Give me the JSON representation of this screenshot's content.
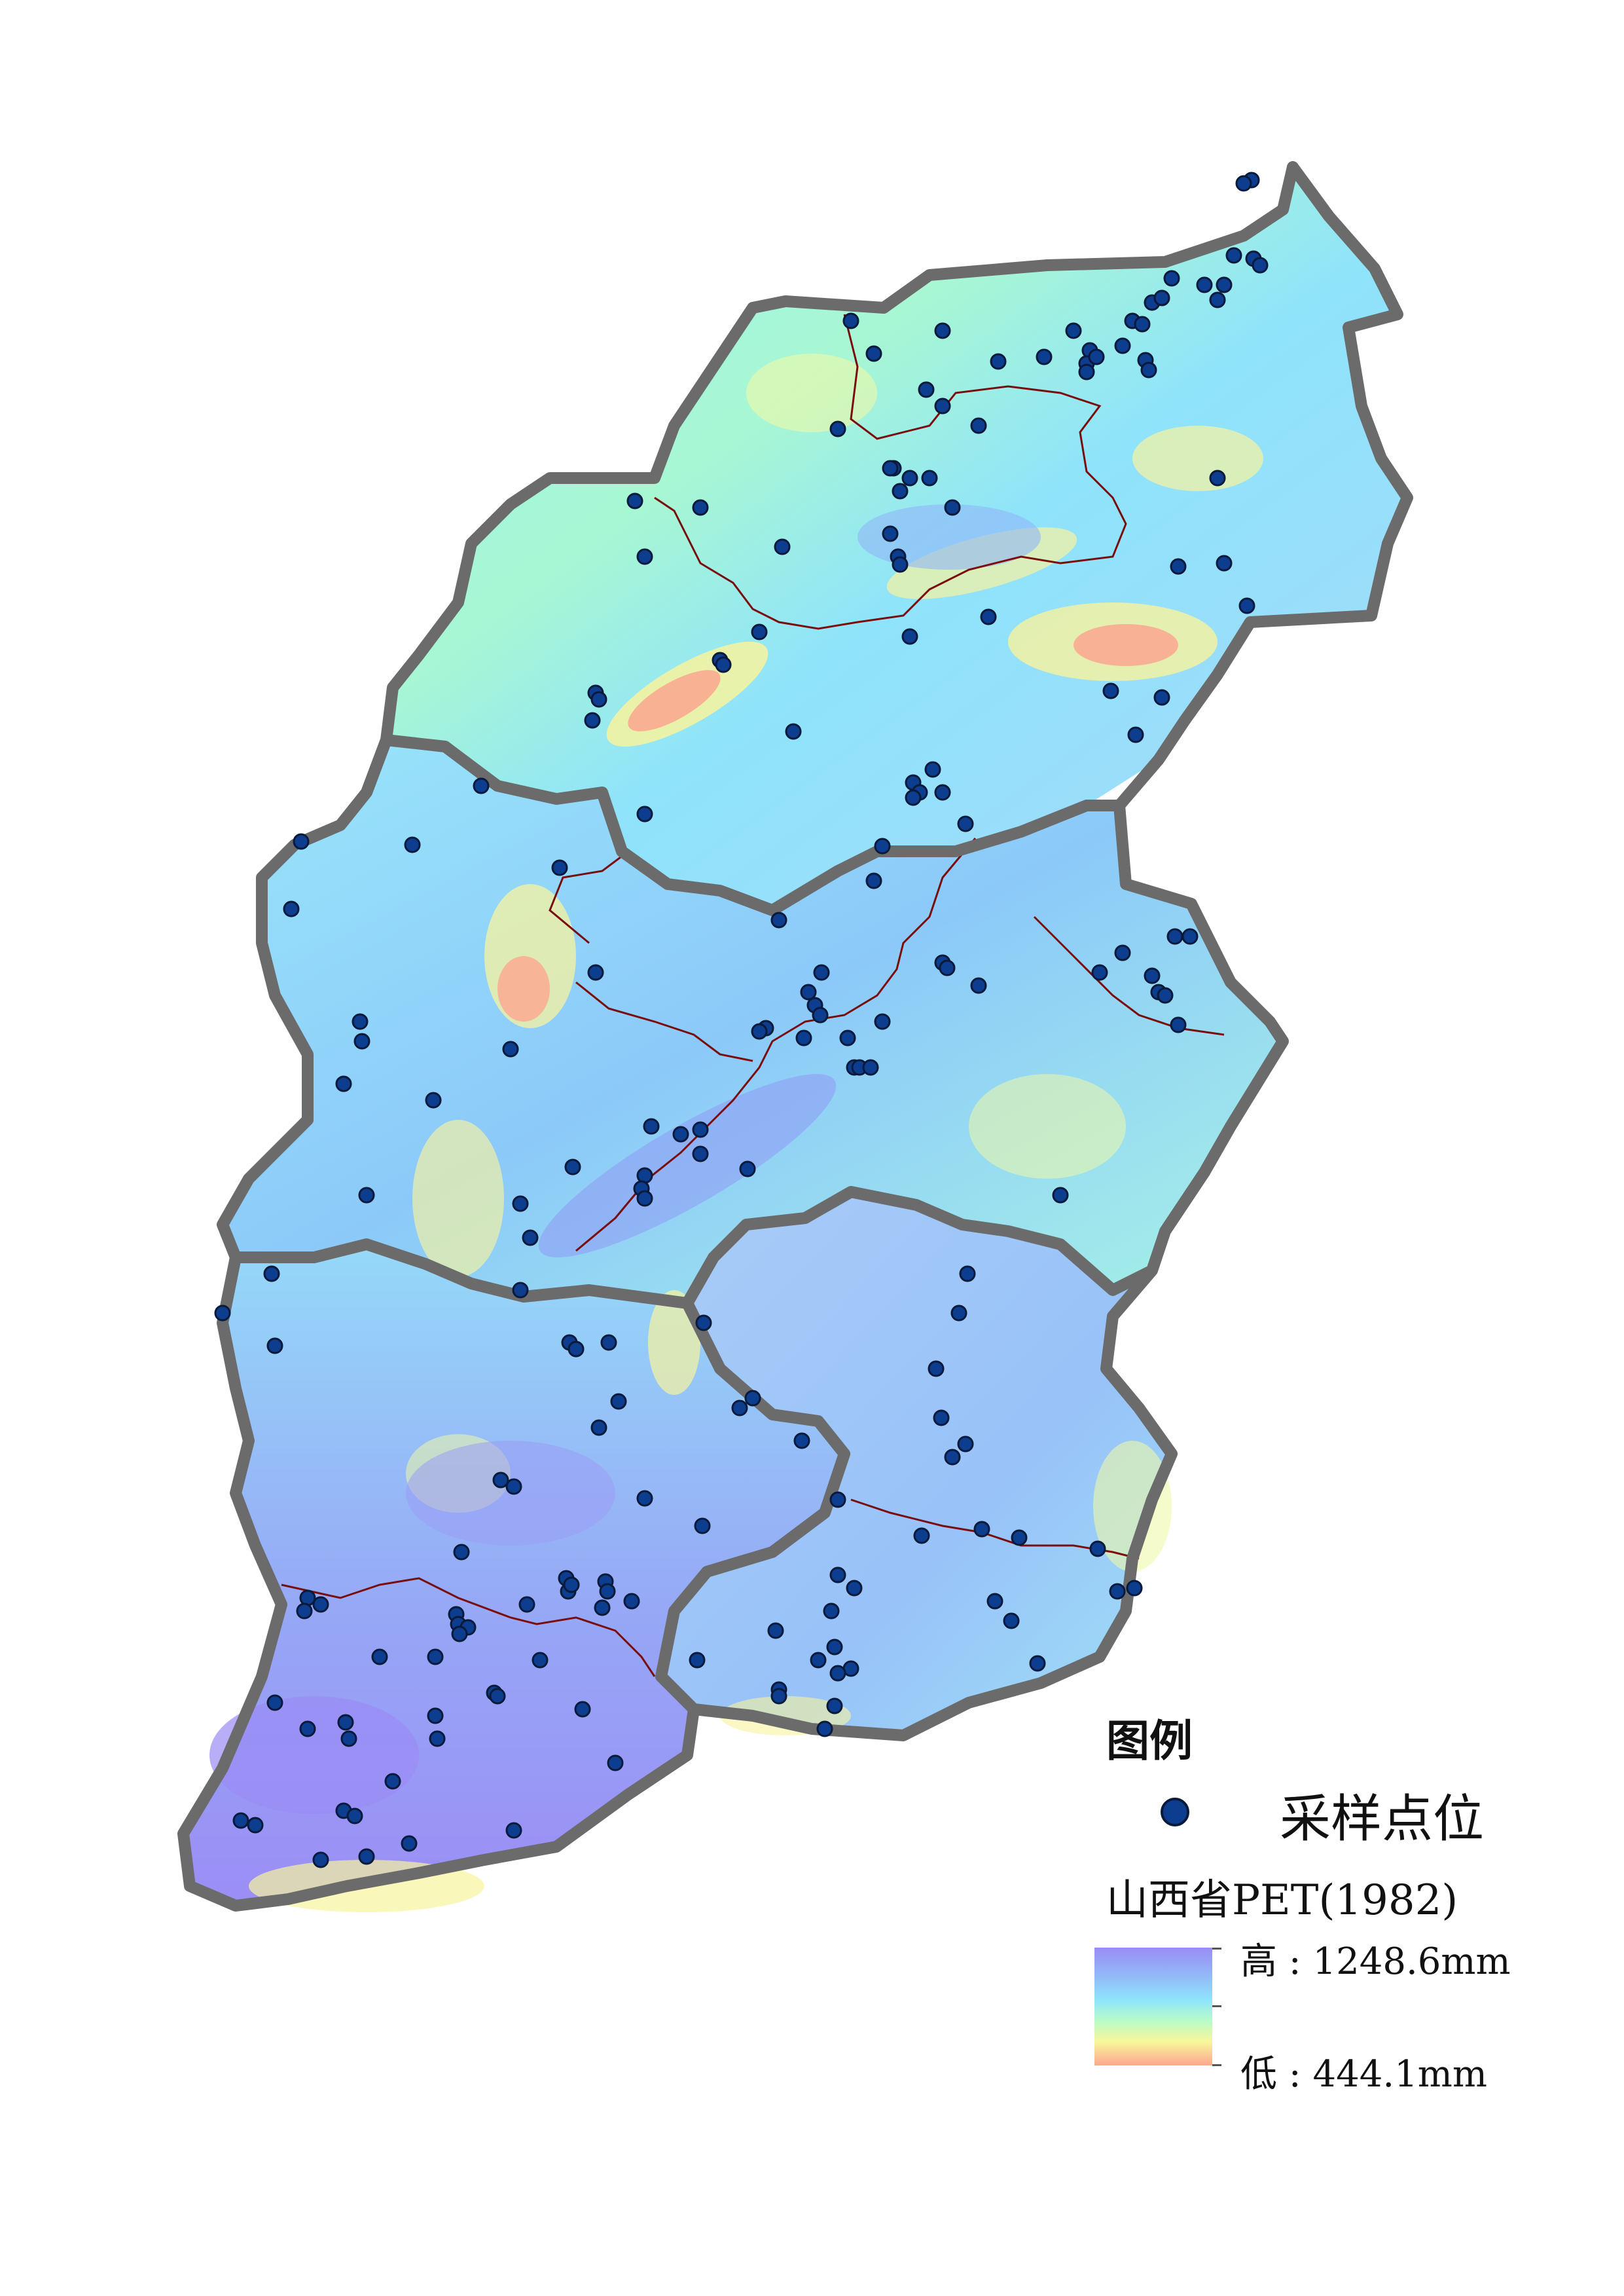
{
  "legend": {
    "title": "图例",
    "point_label": "采样点位",
    "raster_title": "山西省PET(1982)",
    "high_label": "高 : 1248.6mm",
    "low_label": "低 : 444.1mm"
  },
  "colors": {
    "high": "#9a8cf5",
    "mid": "#8fe6fb",
    "low": "#fca68f",
    "point_fill": "#0d3d8f",
    "province_border": "#6b6b6b",
    "county_border": "#7a0d0d"
  },
  "icons": {
    "sample_point": "filled-circle-icon"
  }
}
